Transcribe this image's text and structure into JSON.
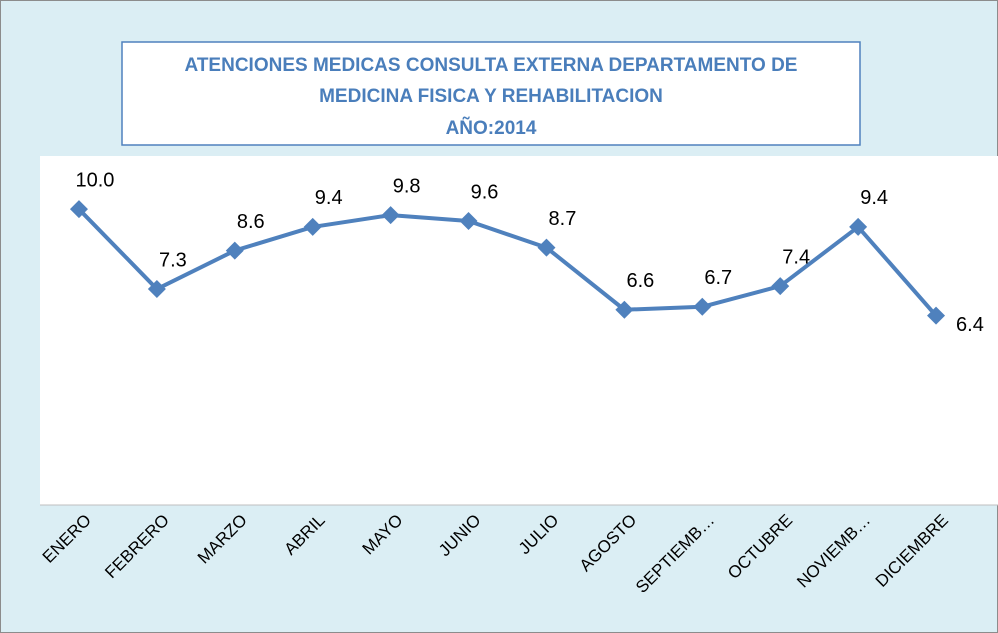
{
  "chart_data": {
    "type": "line",
    "title": [
      "ATENCIONES MEDICAS CONSULTA EXTERNA DEPARTAMENTO DE",
      "MEDICINA FISICA Y REHABILITACION",
      "AÑO:2014"
    ],
    "categories": [
      "ENERO",
      "FEBRERO",
      "MARZO",
      "ABRIL",
      "MAYO",
      "JUNIO",
      "JULIO",
      "AGOSTO",
      "SEPTIEMB…",
      "OCTUBRE",
      "NOVIEMB…",
      "DICIEMBRE"
    ],
    "values": [
      10.0,
      7.3,
      8.6,
      9.4,
      9.8,
      9.6,
      8.7,
      6.6,
      6.7,
      7.4,
      9.4,
      6.4
    ],
    "value_labels": [
      "10.0",
      "7.3",
      "8.6",
      "9.4",
      "9.8",
      "9.6",
      "8.7",
      "6.6",
      "6.7",
      "7.4",
      "9.4",
      "6.4"
    ],
    "color": "#4f81bd",
    "ylim": [
      0,
      12
    ]
  }
}
